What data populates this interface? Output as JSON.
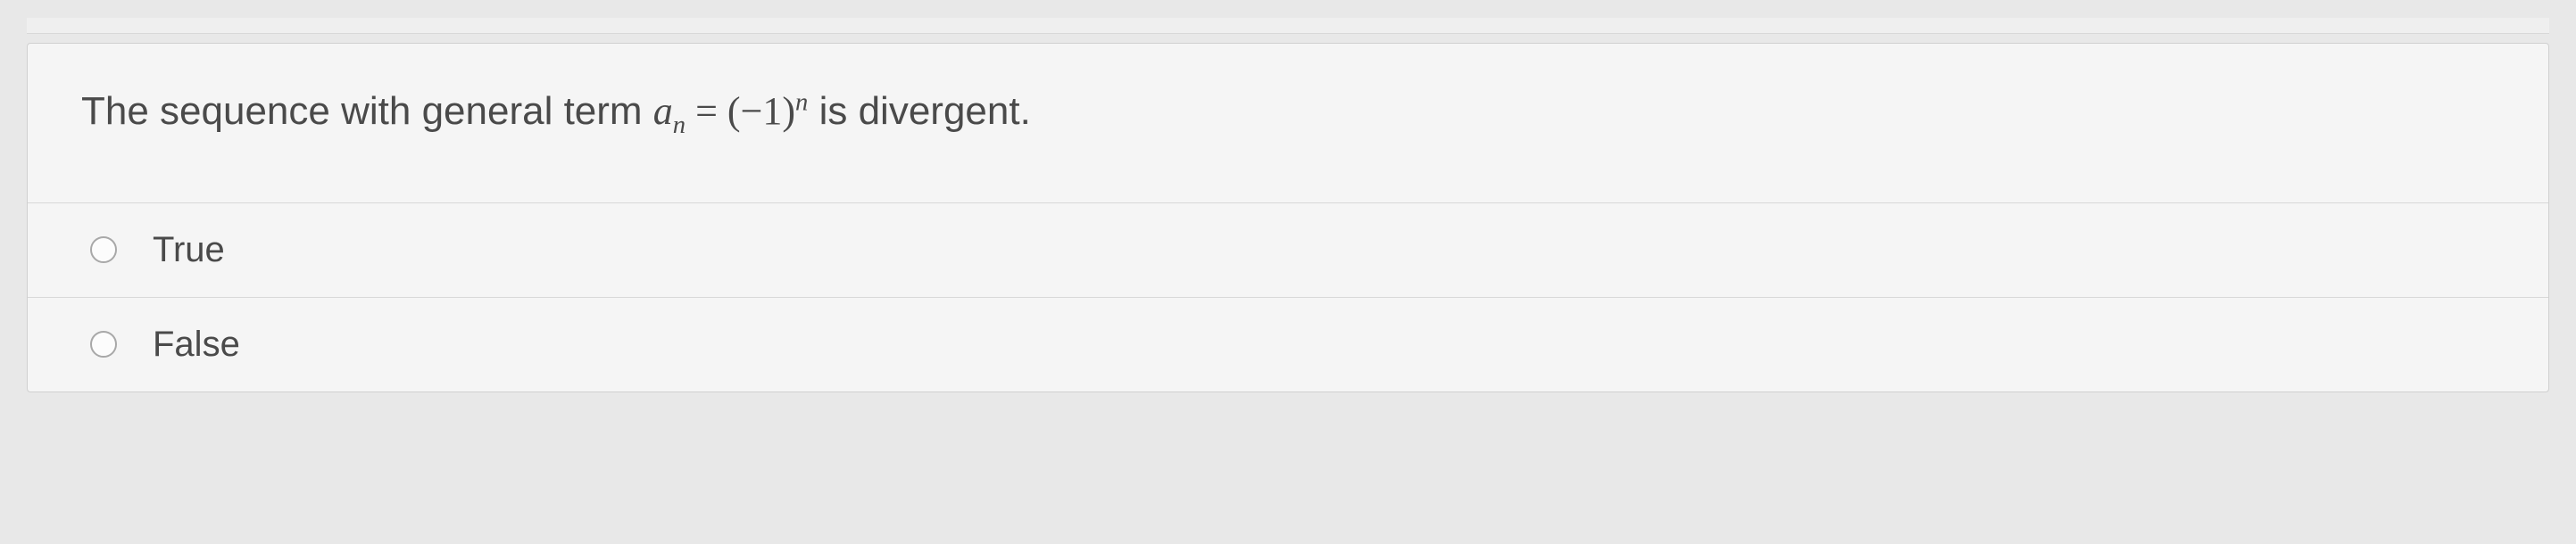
{
  "question": {
    "prefix_text": "The sequence with general term ",
    "term_base": "a",
    "term_sub": "n",
    "equals": " = ",
    "expr_open": "(−1)",
    "expr_sup": "n",
    "suffix_text": "  is divergent."
  },
  "options": [
    {
      "label": "True",
      "selected": false
    },
    {
      "label": "False",
      "selected": false
    }
  ],
  "colors": {
    "background": "#e8e8e8",
    "container_bg": "#f5f5f5",
    "border": "#d0d0d0",
    "divider": "#d8d8d8",
    "text": "#4a4a4a",
    "radio_border": "#a8a8a8"
  }
}
